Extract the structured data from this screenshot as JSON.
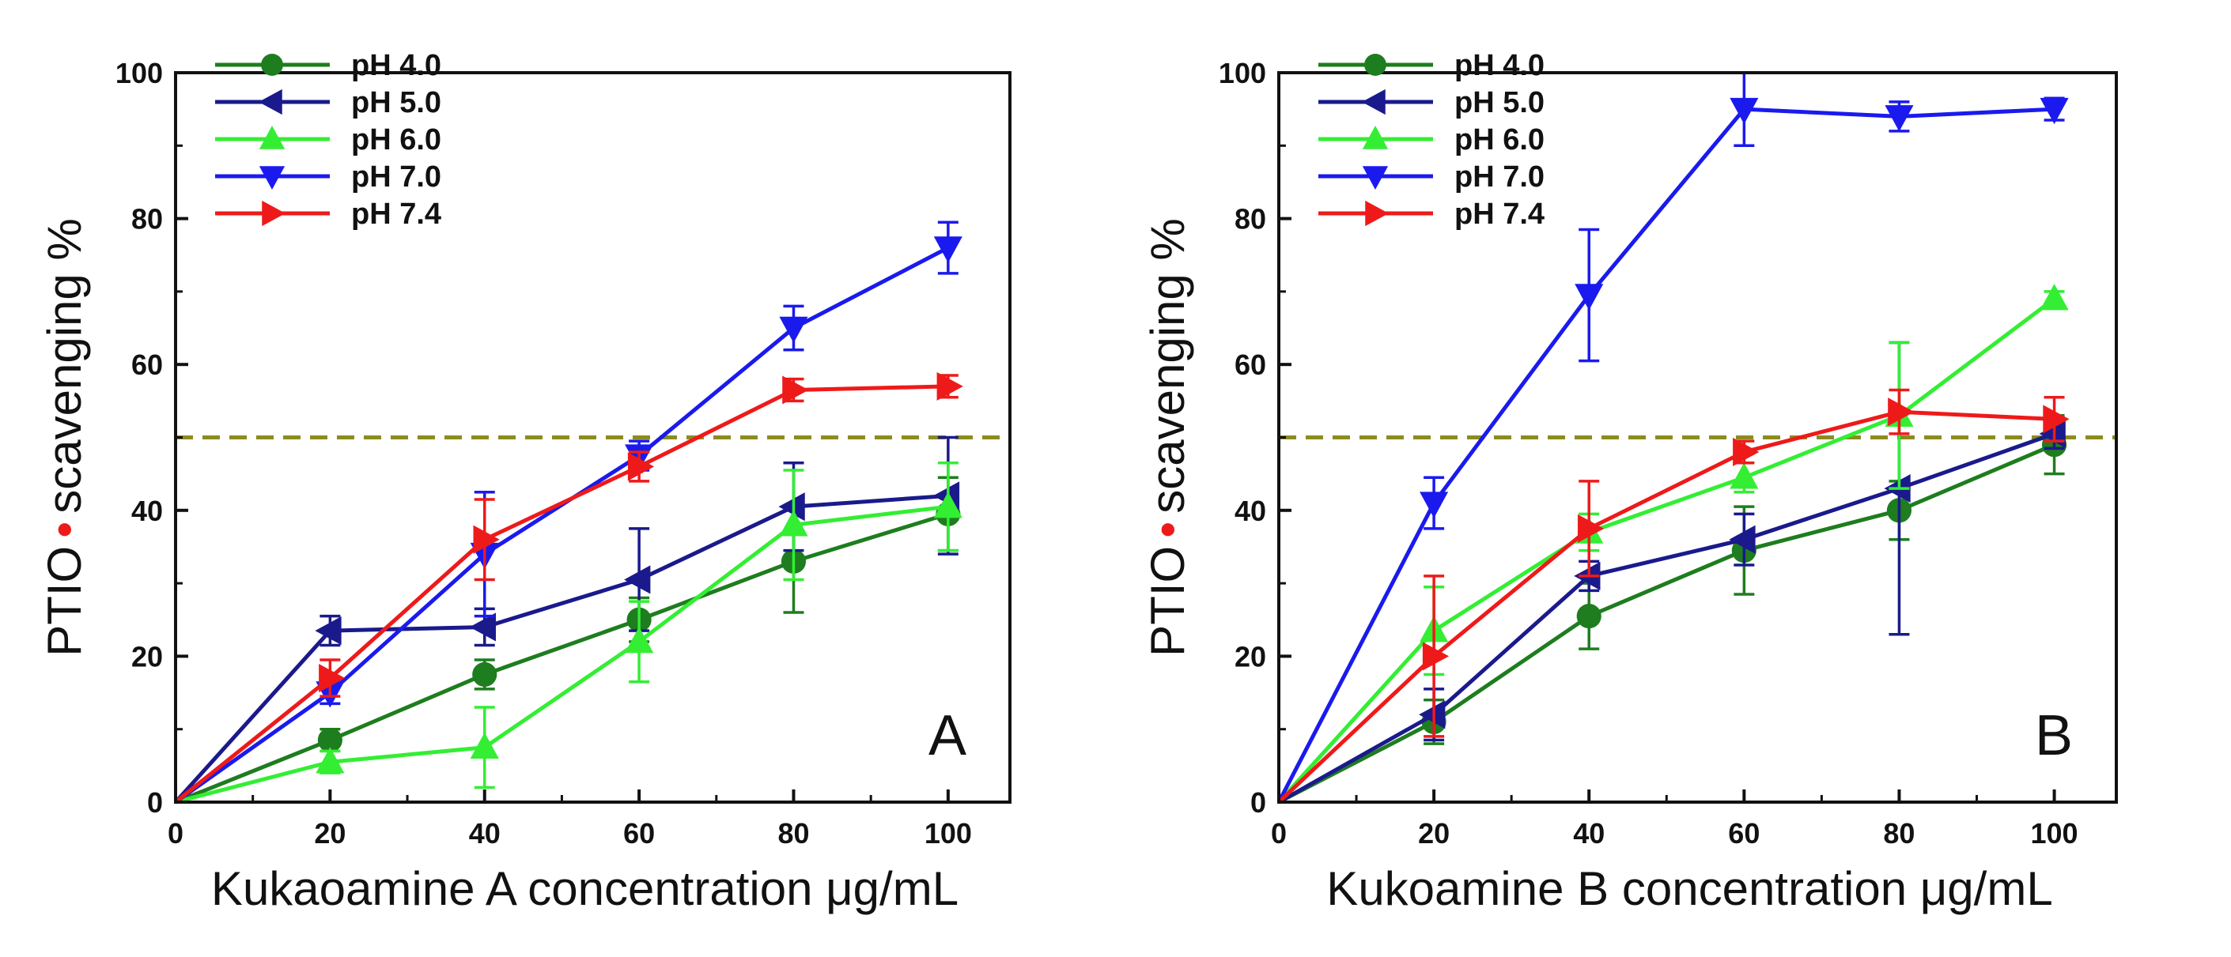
{
  "chart_data": [
    {
      "type": "line",
      "panel_label": "A",
      "xlabel": "Kukaoamine A concentration  μg/mL",
      "ylabel_prefix": "PTIO",
      "ylabel_suffix": "scavenging %",
      "xlim": [
        0,
        108
      ],
      "ylim": [
        0,
        100
      ],
      "xticks": [
        0,
        20,
        40,
        60,
        80,
        100
      ],
      "yticks": [
        0,
        20,
        40,
        60,
        80,
        100
      ],
      "x": [
        0,
        20,
        40,
        60,
        80,
        100
      ],
      "reference_line": 50,
      "legend_position": "top-left",
      "series": [
        {
          "name": "pH 4.0",
          "color": "#1e7d1e",
          "marker": "circle",
          "values": [
            0,
            8.5,
            17.5,
            25,
            33,
            39.5
          ],
          "errors": [
            0,
            1.5,
            2,
            3,
            7,
            5
          ]
        },
        {
          "name": "pH 5.0",
          "color": "#1a1a8c",
          "marker": "triangle-left",
          "values": [
            0,
            23.5,
            24,
            30.5,
            40.5,
            42
          ],
          "errors": [
            0,
            2,
            2.5,
            7,
            6,
            8
          ]
        },
        {
          "name": "pH 6.0",
          "color": "#33ee33",
          "marker": "triangle-up",
          "values": [
            0,
            5.5,
            7.5,
            22,
            38,
            40.5
          ],
          "errors": [
            0,
            1.5,
            5.5,
            5.5,
            7.5,
            6
          ]
        },
        {
          "name": "pH 7.0",
          "color": "#1a1aee",
          "marker": "triangle-down",
          "values": [
            0,
            15,
            34,
            47.5,
            65,
            76
          ],
          "errors": [
            0,
            1.5,
            8.5,
            2,
            3,
            3.5
          ]
        },
        {
          "name": "pH 7.4",
          "color": "#ee1a1a",
          "marker": "triangle-right",
          "values": [
            0,
            17,
            36,
            46,
            56.5,
            57
          ],
          "errors": [
            0,
            2.5,
            5.5,
            2,
            1.5,
            1.5
          ]
        }
      ]
    },
    {
      "type": "line",
      "panel_label": "B",
      "xlabel": "Kukoamine B concentration  μg/mL",
      "ylabel_prefix": "PTIO",
      "ylabel_suffix": "scavenging %",
      "xlim": [
        0,
        108
      ],
      "ylim": [
        0,
        100
      ],
      "xticks": [
        0,
        20,
        40,
        60,
        80,
        100
      ],
      "yticks": [
        0,
        20,
        40,
        60,
        80,
        100
      ],
      "x": [
        0,
        20,
        40,
        60,
        80,
        100
      ],
      "reference_line": 50,
      "legend_position": "top-left",
      "series": [
        {
          "name": "pH 4.0",
          "color": "#1e7d1e",
          "marker": "circle",
          "values": [
            0,
            11,
            25.5,
            34.5,
            40,
            49
          ],
          "errors": [
            0,
            3,
            4.5,
            6,
            4,
            4
          ]
        },
        {
          "name": "pH 5.0",
          "color": "#1a1a8c",
          "marker": "triangle-left",
          "values": [
            0,
            12,
            31,
            36,
            43,
            50.5
          ],
          "errors": [
            0,
            3.5,
            2,
            3.5,
            20,
            2
          ]
        },
        {
          "name": "pH 6.0",
          "color": "#33ee33",
          "marker": "triangle-up",
          "values": [
            0,
            23.5,
            37,
            44.5,
            53,
            69
          ],
          "errors": [
            0,
            6,
            2.5,
            2,
            10,
            1
          ]
        },
        {
          "name": "pH 7.0",
          "color": "#1a1aee",
          "marker": "triangle-down",
          "values": [
            0,
            41,
            69.5,
            95,
            94,
            95
          ],
          "errors": [
            0,
            3.5,
            9,
            5,
            2,
            1.5
          ]
        },
        {
          "name": "pH 7.4",
          "color": "#ee1a1a",
          "marker": "triangle-right",
          "values": [
            0,
            20,
            37.5,
            48,
            53.5,
            52.5
          ],
          "errors": [
            0,
            11,
            6.5,
            1.5,
            3,
            3
          ]
        }
      ]
    }
  ]
}
